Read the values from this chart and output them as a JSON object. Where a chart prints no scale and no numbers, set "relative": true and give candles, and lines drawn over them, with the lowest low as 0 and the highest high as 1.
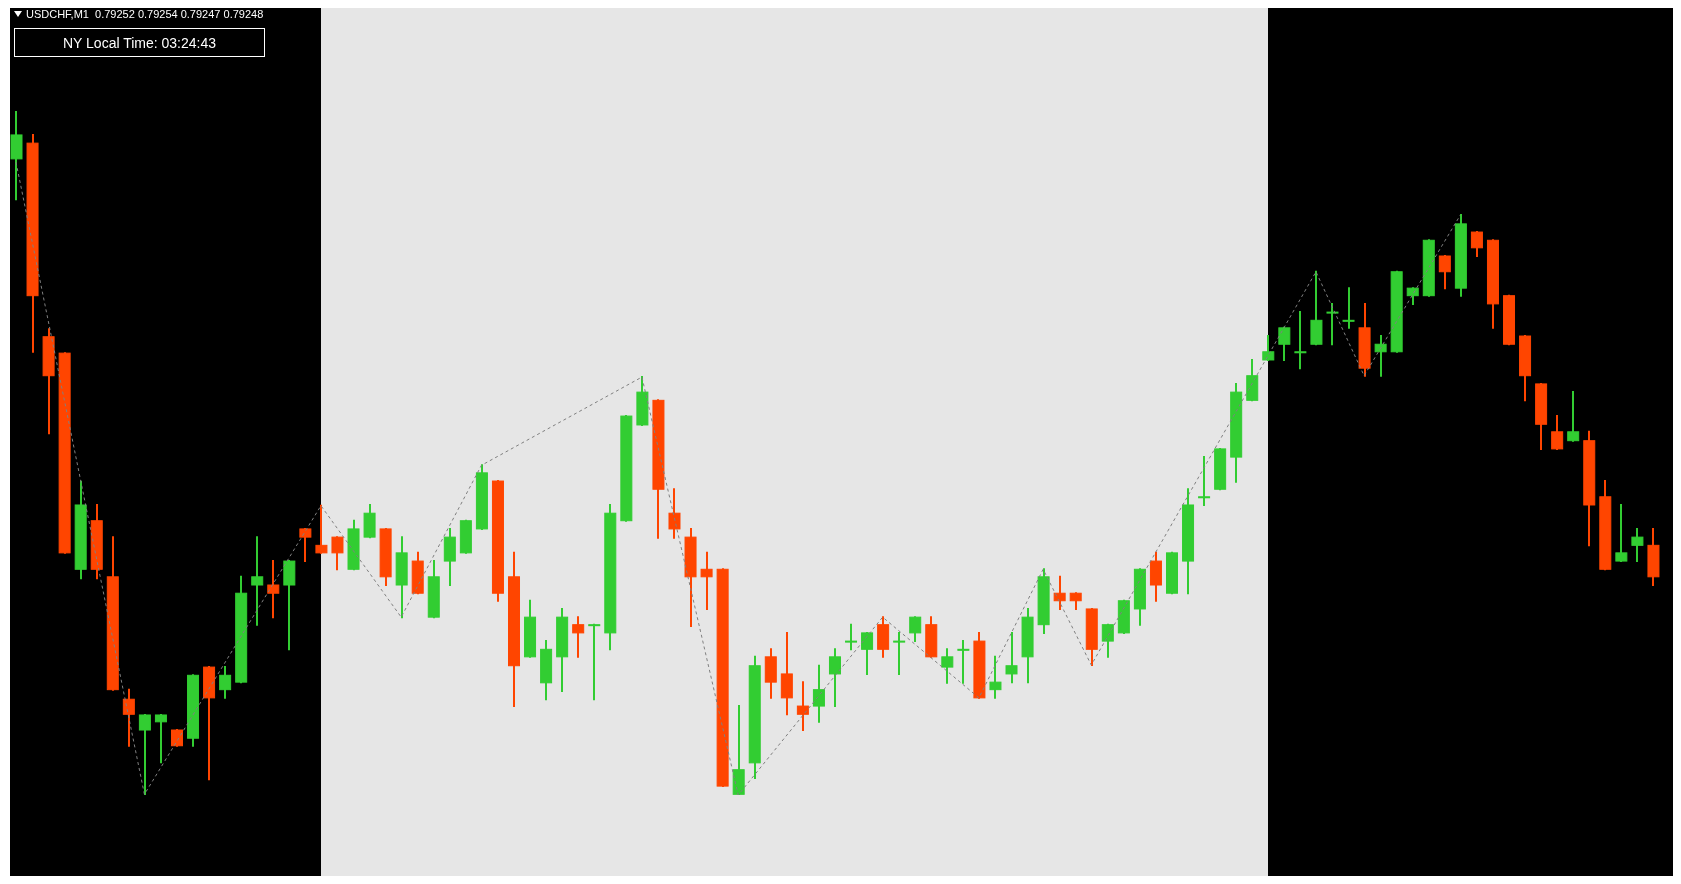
{
  "chart_data": {
    "type": "candlestick",
    "title": "USDCHF,M1  0.79252 0.79254 0.79247 0.79248",
    "annotations": [
      "NY Local Time: 03:24:43"
    ],
    "relative": true,
    "categories": [
      null,
      null,
      null,
      null,
      null,
      null,
      null,
      null,
      null,
      null,
      null,
      null,
      null,
      null,
      null,
      null,
      null,
      null,
      null,
      null,
      null,
      null,
      null,
      null,
      null,
      null,
      null,
      null,
      null,
      null,
      null,
      null,
      null,
      null,
      null,
      null,
      null,
      null,
      null,
      null,
      null,
      null,
      null,
      null,
      null,
      null,
      null,
      null,
      null,
      null,
      null,
      null,
      null,
      null,
      null,
      null,
      null,
      null,
      null,
      null,
      null,
      null,
      null,
      null,
      null,
      null,
      null,
      null,
      null,
      null,
      null,
      null,
      null,
      null,
      null,
      null,
      null,
      null,
      null,
      null,
      null,
      null,
      null,
      null,
      null,
      null,
      null,
      null,
      null,
      null,
      null,
      null,
      null,
      null,
      null,
      null,
      null,
      null,
      null,
      null,
      null,
      null,
      null
    ],
    "ohlc": [
      [
        0.93,
        1.0,
        0.871,
        0.965
      ],
      [
        0.953,
        0.965,
        0.648,
        0.73
      ],
      [
        0.67,
        0.681,
        0.529,
        0.613
      ],
      [
        0.646,
        0.646,
        0.354,
        0.354
      ],
      [
        0.33,
        0.458,
        0.317,
        0.424
      ],
      [
        0.401,
        0.424,
        0.317,
        0.33
      ],
      [
        0.319,
        0.377,
        0.154,
        0.154
      ],
      [
        0.14,
        0.154,
        0.072,
        0.118
      ],
      [
        0.095,
        0.117,
        0.001,
        0.117
      ],
      [
        0.107,
        0.117,
        0.048,
        0.117
      ],
      [
        0.095,
        0.095,
        0.072,
        0.072
      ],
      [
        0.083,
        0.175,
        0.072,
        0.175
      ],
      [
        0.187,
        0.187,
        0.023,
        0.142
      ],
      [
        0.154,
        0.187,
        0.142,
        0.175
      ],
      [
        0.165,
        0.319,
        0.165,
        0.295
      ],
      [
        0.307,
        0.377,
        0.249,
        0.319
      ],
      [
        0.307,
        0.342,
        0.26,
        0.295
      ],
      [
        0.307,
        0.342,
        0.213,
        0.342
      ],
      [
        0.389,
        0.389,
        0.342,
        0.377
      ],
      [
        0.365,
        0.423,
        0.354,
        0.354
      ],
      [
        0.377,
        0.377,
        0.33,
        0.354
      ],
      [
        0.33,
        0.401,
        0.33,
        0.389
      ],
      [
        0.377,
        0.424,
        0.377,
        0.412
      ],
      [
        0.389,
        0.389,
        0.307,
        0.319
      ],
      [
        0.307,
        0.377,
        0.26,
        0.354
      ],
      [
        0.342,
        0.354,
        0.295,
        0.295
      ],
      [
        0.26,
        0.342,
        0.26,
        0.319
      ],
      [
        0.342,
        0.389,
        0.307,
        0.377
      ],
      [
        0.354,
        0.401,
        0.354,
        0.401
      ],
      [
        0.389,
        0.482,
        0.389,
        0.471
      ],
      [
        0.459,
        0.459,
        0.284,
        0.295
      ],
      [
        0.319,
        0.354,
        0.13,
        0.189
      ],
      [
        0.202,
        0.284,
        0.202,
        0.26
      ],
      [
        0.164,
        0.225,
        0.14,
        0.213
      ],
      [
        0.202,
        0.272,
        0.152,
        0.26
      ],
      [
        0.249,
        0.26,
        0.202,
        0.237
      ],
      [
        0.249,
        0.249,
        0.14,
        0.249
      ],
      [
        0.237,
        0.424,
        0.213,
        0.412
      ],
      [
        0.401,
        0.554,
        0.401,
        0.554
      ],
      [
        0.541,
        0.611,
        0.541,
        0.589
      ],
      [
        0.577,
        0.577,
        0.376,
        0.447
      ],
      [
        0.412,
        0.447,
        0.376,
        0.389
      ],
      [
        0.377,
        0.389,
        0.247,
        0.319
      ],
      [
        0.33,
        0.354,
        0.272,
        0.319
      ],
      [
        0.33,
        0.33,
        0.013,
        0.013
      ],
      [
        0.001,
        0.13,
        0,
        0.037
      ],
      [
        0.047,
        0.202,
        0.025,
        0.189
      ],
      [
        0.202,
        0.213,
        0.142,
        0.165
      ],
      [
        0.177,
        0.237,
        0.118,
        0.142
      ],
      [
        0.13,
        0.165,
        0.095,
        0.118
      ],
      [
        0.13,
        0.189,
        0.107,
        0.154
      ],
      [
        0.177,
        0.213,
        0.13,
        0.202
      ],
      [
        0.225,
        0.249,
        0.213,
        0.225
      ],
      [
        0.213,
        0.237,
        0.177,
        0.237
      ],
      [
        0.249,
        0.26,
        0.202,
        0.213
      ],
      [
        0.225,
        0.237,
        0.177,
        0.225
      ],
      [
        0.237,
        0.26,
        0.225,
        0.26
      ],
      [
        0.249,
        0.26,
        0.202,
        0.202
      ],
      [
        0.187,
        0.213,
        0.164,
        0.202
      ],
      [
        0.213,
        0.225,
        0.164,
        0.213
      ],
      [
        0.225,
        0.237,
        0.142,
        0.142
      ],
      [
        0.154,
        0.202,
        0.142,
        0.165
      ],
      [
        0.177,
        0.237,
        0.165,
        0.189
      ],
      [
        0.202,
        0.272,
        0.165,
        0.26
      ],
      [
        0.249,
        0.33,
        0.237,
        0.319
      ],
      [
        0.295,
        0.319,
        0.272,
        0.284
      ],
      [
        0.295,
        0.295,
        0.272,
        0.284
      ],
      [
        0.272,
        0.272,
        0.19,
        0.213
      ],
      [
        0.225,
        0.249,
        0.202,
        0.249
      ],
      [
        0.237,
        0.284,
        0.237,
        0.284
      ],
      [
        0.272,
        0.33,
        0.249,
        0.33
      ],
      [
        0.342,
        0.354,
        0.284,
        0.307
      ],
      [
        0.295,
        0.354,
        0.295,
        0.354
      ],
      [
        0.342,
        0.447,
        0.295,
        0.424
      ],
      [
        0.436,
        0.494,
        0.424,
        0.436
      ],
      [
        0.447,
        0.506,
        0.447,
        0.506
      ],
      [
        0.494,
        0.601,
        0.458,
        0.589
      ],
      [
        0.577,
        0.636,
        0.577,
        0.613
      ],
      [
        0.636,
        0.671,
        0.636,
        0.648
      ],
      [
        0.659,
        0.683,
        0.636,
        0.683
      ],
      [
        0.648,
        0.706,
        0.624,
        0.648
      ],
      [
        0.659,
        0.765,
        0.659,
        0.694
      ],
      [
        0.706,
        0.718,
        0.659,
        0.706
      ],
      [
        0.694,
        0.741,
        0.683,
        0.694
      ],
      [
        0.683,
        0.718,
        0.613,
        0.624
      ],
      [
        0.648,
        0.671,
        0.613,
        0.659
      ],
      [
        0.648,
        0.765,
        0.648,
        0.765
      ],
      [
        0.73,
        0.741,
        0.718,
        0.741
      ],
      [
        0.73,
        0.811,
        0.73,
        0.811
      ],
      [
        0.788,
        0.788,
        0.741,
        0.765
      ],
      [
        0.741,
        0.848,
        0.73,
        0.835
      ],
      [
        0.823,
        0.823,
        0.788,
        0.8
      ],
      [
        0.811,
        0.811,
        0.683,
        0.718
      ],
      [
        0.73,
        0.73,
        0.659,
        0.659
      ],
      [
        0.671,
        0.671,
        0.577,
        0.613
      ],
      [
        0.601,
        0.601,
        0.506,
        0.542
      ],
      [
        0.531,
        0.554,
        0.506,
        0.506
      ],
      [
        0.518,
        0.589,
        0.518,
        0.531
      ],
      [
        0.518,
        0.531,
        0.365,
        0.424
      ],
      [
        0.436,
        0.459,
        0.33,
        0.33
      ],
      [
        0.342,
        0.424,
        0.342,
        0.354
      ],
      [
        0.365,
        0.389,
        0.342,
        0.377
      ],
      [
        0.365,
        0.389,
        0.307,
        0.319
      ]
    ],
    "colors": [
      "#32cd32",
      "#ff4500",
      "#ff4500",
      "#ff4500",
      "#32cd32",
      "#ff4500",
      "#ff4500",
      "#ff4500",
      "#32cd32",
      "#32cd32",
      "#ff4500",
      "#32cd32",
      "#ff4500",
      "#32cd32",
      "#32cd32",
      "#32cd32",
      "#ff4500",
      "#32cd32",
      "#ff4500",
      "#ff4500",
      "#ff4500",
      "#32cd32",
      "#32cd32",
      "#ff4500",
      "#32cd32",
      "#ff4500",
      "#32cd32",
      "#32cd32",
      "#32cd32",
      "#32cd32",
      "#ff4500",
      "#ff4500",
      "#32cd32",
      "#32cd32",
      "#32cd32",
      "#ff4500",
      "#32cd32",
      "#32cd32",
      "#32cd32",
      "#32cd32",
      "#ff4500",
      "#ff4500",
      "#ff4500",
      "#ff4500",
      "#ff4500",
      "#32cd32",
      "#32cd32",
      "#ff4500",
      "#ff4500",
      "#ff4500",
      "#32cd32",
      "#32cd32",
      "#32cd32",
      "#32cd32",
      "#ff4500",
      "#32cd32",
      "#32cd32",
      "#ff4500",
      "#32cd32",
      "#32cd32",
      "#ff4500",
      "#32cd32",
      "#32cd32",
      "#32cd32",
      "#32cd32",
      "#ff4500",
      "#ff4500",
      "#ff4500",
      "#32cd32",
      "#32cd32",
      "#32cd32",
      "#ff4500",
      "#32cd32",
      "#32cd32",
      "#32cd32",
      "#32cd32",
      "#32cd32",
      "#32cd32",
      "#32cd32",
      "#32cd32",
      "#32cd32",
      "#32cd32",
      "#32cd32",
      "#32cd32",
      "#ff4500",
      "#32cd32",
      "#32cd32",
      "#32cd32",
      "#32cd32",
      "#ff4500",
      "#32cd32",
      "#ff4500",
      "#ff4500",
      "#ff4500",
      "#ff4500",
      "#ff4500",
      "#ff4500",
      "#32cd32",
      "#ff4500",
      "#ff4500",
      "#32cd32",
      "#32cd32",
      "#ff4500"
    ],
    "series": [
      {
        "type": "line",
        "color": "#808080",
        "line_style": "dashed",
        "values": [
          0.925,
          null,
          null,
          null,
          null,
          null,
          null,
          null,
          0.001,
          null,
          null,
          null,
          null,
          null,
          null,
          null,
          null,
          null,
          null,
          0.423,
          null,
          null,
          null,
          null,
          0.26,
          null,
          null,
          null,
          null,
          0.482,
          null,
          null,
          null,
          null,
          null,
          null,
          null,
          null,
          null,
          0.611,
          null,
          null,
          null,
          null,
          null,
          0,
          null,
          null,
          null,
          null,
          null,
          null,
          null,
          null,
          0.26,
          null,
          null,
          null,
          null,
          null,
          0.142,
          null,
          null,
          null,
          0.33,
          null,
          null,
          0.19,
          null,
          null,
          null,
          null,
          null,
          null,
          null,
          null,
          null,
          null,
          null,
          null,
          null,
          0.765,
          null,
          null,
          0.613,
          null,
          null,
          null,
          null,
          null,
          0.848,
          null,
          null,
          null,
          null,
          null,
          null,
          null,
          null,
          null,
          null,
          null,
          null
        ]
      }
    ]
  }
}
